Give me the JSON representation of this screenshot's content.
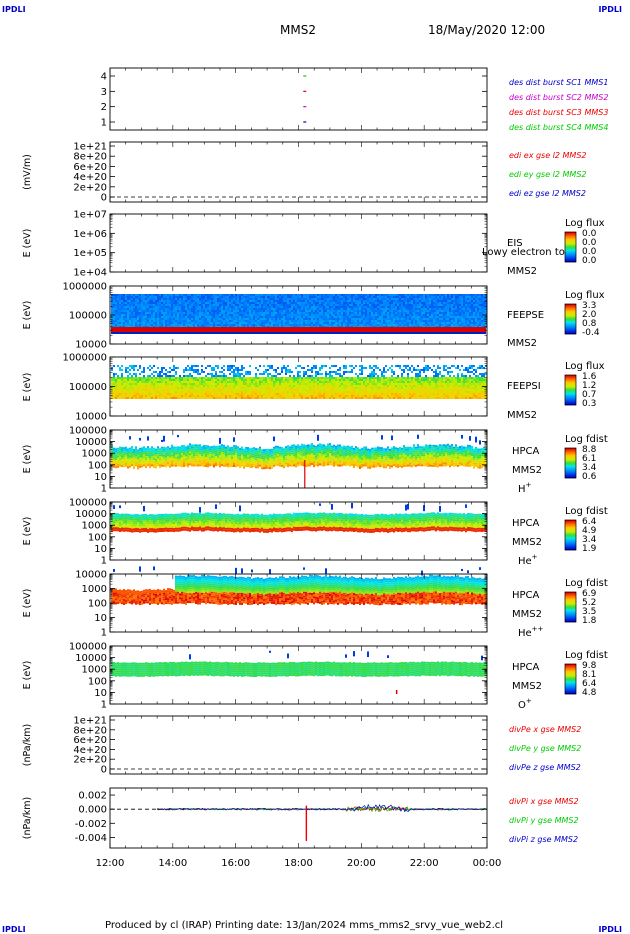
{
  "header": {
    "corner_left": "IPDLI",
    "corner_right": "IPDLI",
    "spacecraft": "MMS2",
    "datetime": "18/May/2020 12:00"
  },
  "footer": {
    "corner_left": "IPDLI",
    "corner_right": "IPDLI",
    "credit": "Produced by cl (IRAP)   Printing date: 13/Jan/2024   mms_mms2_srvy_vue_web2.cl"
  },
  "colors": {
    "blue": "#0000cc",
    "magenta": "#cc00cc",
    "red": "#ee0000",
    "green": "#00cc00"
  },
  "time_axis": {
    "ticks": [
      "12:00",
      "14:00",
      "16:00",
      "18:00",
      "20:00",
      "22:00",
      "00:00"
    ]
  },
  "chart_data": [
    {
      "type": "scatter",
      "id": "burst",
      "yticks": [
        "4",
        "3",
        "2",
        "1"
      ],
      "ylim": [
        0.5,
        4.5
      ],
      "legend": [
        {
          "text": "des dist burst SC1 MMS1",
          "color": "blue"
        },
        {
          "text": "des dist burst SC2 MMS2",
          "color": "magenta"
        },
        {
          "text": "des dist burst SC3 MMS3",
          "color": "red"
        },
        {
          "text": "des dist burst SC4 MMS4",
          "color": "green"
        }
      ],
      "marks": [
        {
          "t": 18.2,
          "y": 4,
          "color": "green"
        },
        {
          "t": 18.2,
          "y": 3,
          "color": "red"
        },
        {
          "t": 18.2,
          "y": 2,
          "color": "magenta"
        },
        {
          "t": 18.2,
          "y": 1,
          "color": "blue"
        }
      ]
    },
    {
      "type": "line",
      "id": "edi",
      "ylabel": "(mV/m)",
      "yticks": [
        "1e+21",
        "8e+20",
        "6e+20",
        "4e+20",
        "2e+20",
        "0"
      ],
      "ylim": [
        0,
        1e+21
      ],
      "legend": [
        {
          "text": "edi ex gse l2 MMS2",
          "color": "red"
        },
        {
          "text": "edi ey gse l2 MMS2",
          "color": "green"
        },
        {
          "text": "edi ez gse l2 MMS2",
          "color": "blue"
        }
      ]
    },
    {
      "type": "heatmap",
      "id": "eis",
      "ylabel": "E (eV)",
      "yticks": [
        "1e+07",
        "1e+06",
        "1e+05",
        "1e+04"
      ],
      "ylim": [
        10000.0,
        10000000.0
      ],
      "labels": [
        "EIS",
        "MMS2"
      ],
      "overlay_text": "Lowy electron to",
      "colorbar": {
        "title": "Log flux",
        "ticks": [
          "0.0",
          "0.0",
          "0.0",
          "0.0"
        ]
      }
    },
    {
      "type": "heatmap",
      "id": "feepse",
      "ylabel": "E (eV)",
      "yticks": [
        "1000000",
        "100000",
        "10000"
      ],
      "ylim": [
        10000.0,
        1000000.0
      ],
      "labels": [
        "FEEPSE",
        "MMS2"
      ],
      "colorbar": {
        "title": "Log flux",
        "ticks": [
          "3.3",
          "2.0",
          "0.8",
          "-0.4"
        ]
      }
    },
    {
      "type": "heatmap",
      "id": "feepsi",
      "ylabel": "E (eV)",
      "yticks": [
        "1000000",
        "100000",
        "10000"
      ],
      "ylim": [
        10000.0,
        1000000.0
      ],
      "labels": [
        "FEEPSI",
        "MMS2"
      ],
      "colorbar": {
        "title": "Log flux",
        "ticks": [
          "1.6",
          "1.2",
          "0.7",
          "0.3"
        ]
      }
    },
    {
      "type": "heatmap",
      "id": "hpca_h",
      "ylabel": "E (eV)",
      "yticks": [
        "100000",
        "10000",
        "1000",
        "100",
        "10",
        "1"
      ],
      "ylim": [
        1,
        100000.0
      ],
      "labels": [
        "HPCA",
        "MMS2"
      ],
      "species": "H",
      "species_sup": "+",
      "colorbar": {
        "title": "Log fdist",
        "ticks": [
          "8.8",
          "6.1",
          "3.4",
          "0.6"
        ]
      }
    },
    {
      "type": "heatmap",
      "id": "hpca_he",
      "ylabel": "E (eV)",
      "yticks": [
        "100000",
        "10000",
        "1000",
        "100",
        "10",
        "1"
      ],
      "ylim": [
        1,
        100000.0
      ],
      "labels": [
        "HPCA",
        "MMS2"
      ],
      "species": "He",
      "species_sup": "+",
      "colorbar": {
        "title": "Log fdist",
        "ticks": [
          "6.4",
          "4.9",
          "3.4",
          "1.9"
        ]
      }
    },
    {
      "type": "heatmap",
      "id": "hpca_hepp",
      "ylabel": "E (eV)",
      "yticks": [
        "10000",
        "1000",
        "100",
        "10",
        "1"
      ],
      "ylim": [
        1,
        10000.0
      ],
      "labels": [
        "HPCA",
        "MMS2"
      ],
      "species": "He",
      "species_sup": "++",
      "colorbar": {
        "title": "Log fdist",
        "ticks": [
          "6.9",
          "5.2",
          "3.5",
          "1.8"
        ]
      }
    },
    {
      "type": "heatmap",
      "id": "hpca_o",
      "ylabel": "E (eV)",
      "yticks": [
        "100000",
        "10000",
        "1000",
        "100",
        "10",
        "1"
      ],
      "ylim": [
        1,
        100000.0
      ],
      "labels": [
        "HPCA",
        "MMS2"
      ],
      "species": "O",
      "species_sup": "+",
      "colorbar": {
        "title": "Log fdist",
        "ticks": [
          "9.8",
          "8.1",
          "6.4",
          "4.8"
        ]
      }
    },
    {
      "type": "line",
      "id": "divpe",
      "ylabel": "(nPa/km)",
      "yticks": [
        "1e+21",
        "8e+20",
        "6e+20",
        "4e+20",
        "2e+20",
        "0"
      ],
      "ylim": [
        0,
        1e+21
      ],
      "legend": [
        {
          "text": "divPe x gse MMS2",
          "color": "red"
        },
        {
          "text": "divPe y gse MMS2",
          "color": "green"
        },
        {
          "text": "divPe z gse MMS2",
          "color": "blue"
        }
      ]
    },
    {
      "type": "line",
      "id": "divpi",
      "ylabel": "(nPa/km)",
      "yticks": [
        "0.002",
        "0.000",
        "-0.002",
        "-0.004"
      ],
      "ylim": [
        -0.0055,
        0.003
      ],
      "legend": [
        {
          "text": "divPi x gse MMS2",
          "color": "red"
        },
        {
          "text": "divPi y gse MMS2",
          "color": "green"
        },
        {
          "text": "divPi z gse MMS2",
          "color": "blue"
        }
      ],
      "spike": {
        "t": 18.25,
        "min": -0.0045
      }
    }
  ]
}
